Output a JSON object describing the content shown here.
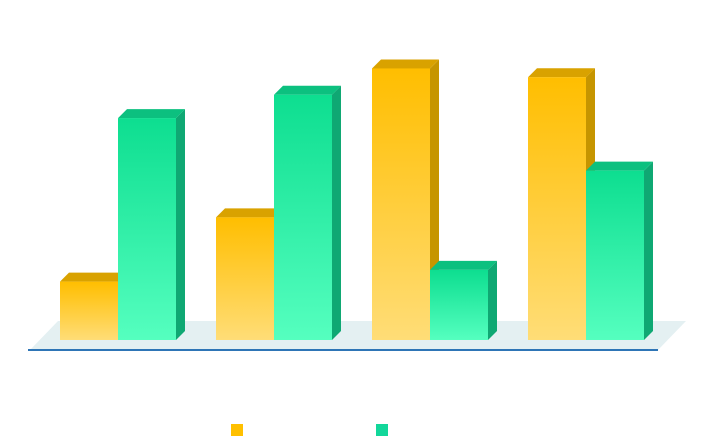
{
  "chart_data": {
    "type": "bar",
    "categories": [
      "",
      "",
      "",
      ""
    ],
    "series": [
      {
        "values": [
          2.0,
          4.2,
          9.3,
          9.0
        ],
        "color": "#FFC000"
      },
      {
        "values": [
          7.6,
          8.4,
          2.4,
          5.8
        ],
        "color": "#12D79A"
      }
    ],
    "ylim": [
      0,
      10
    ],
    "grid": false,
    "legend": "bottom",
    "style": "3d-column"
  }
}
